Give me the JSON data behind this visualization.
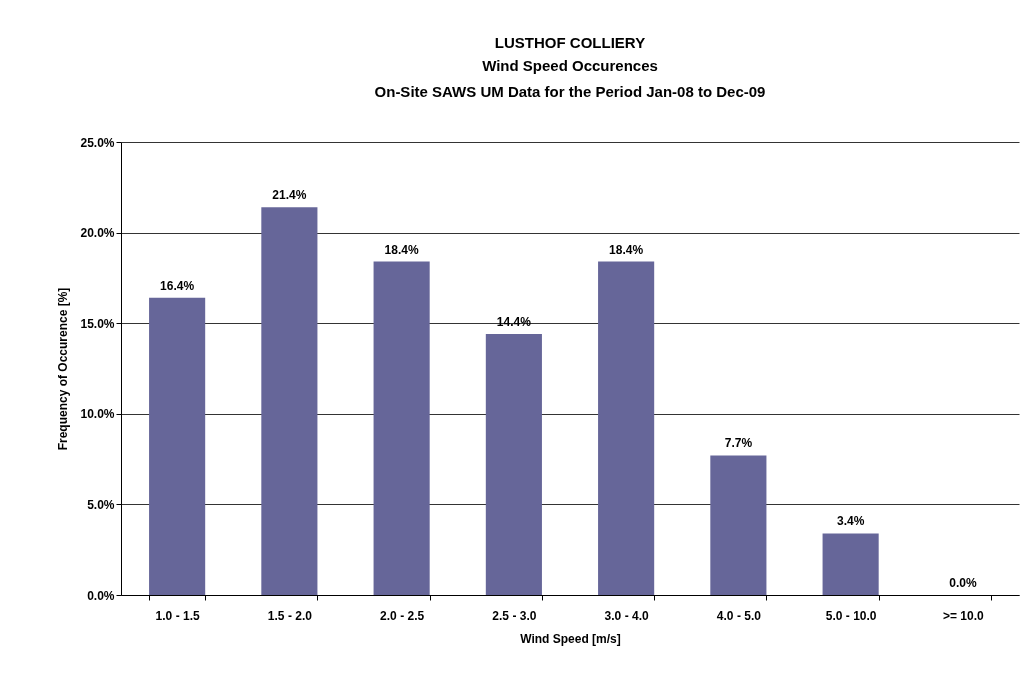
{
  "chart_data": {
    "type": "bar",
    "title": "LUSTHOF COLLIERY",
    "subtitle": "Wind Speed Occurences\nOn-Site SAWS UM Data for the Period Jan-08 to Dec-09",
    "xlabel": "Wind Speed [m/s]",
    "ylabel": "Frequency of Occurence [%]",
    "categories": [
      "1.0 - 1.5",
      "1.5 - 2.0",
      "2.0 - 2.5",
      "2.5 - 3.0",
      "3.0 - 4.0",
      "4.0 - 5.0",
      "5.0 - 10.0",
      ">= 10.0"
    ],
    "values": [
      16.4,
      21.4,
      18.4,
      14.4,
      18.4,
      7.7,
      3.4,
      0.0
    ],
    "value_labels": [
      "16.4%",
      "21.4%",
      "18.4%",
      "14.4%",
      "18.4%",
      "7.7%",
      "3.4%",
      "0.0%"
    ],
    "color": "#666699",
    "ylim": [
      0,
      25
    ],
    "yticks": [
      {
        "value": 0,
        "label": "0.0%"
      },
      {
        "value": 5,
        "label": "5.0%"
      },
      {
        "value": 10,
        "label": "10.0%"
      },
      {
        "value": 15,
        "label": "15.0%"
      },
      {
        "value": 20,
        "label": "20.0%"
      },
      {
        "value": 25,
        "label": "25.0%"
      }
    ],
    "grid": "y"
  }
}
